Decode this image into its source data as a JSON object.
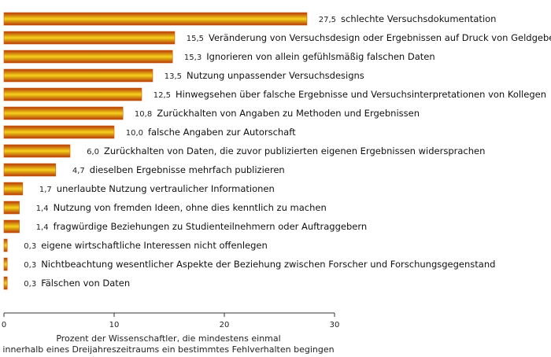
{
  "chart_data": {
    "type": "bar",
    "orientation": "horizontal",
    "categories": [
      "schlechte Versuchsdokumentation",
      "Veränderung von Versuchsdesign oder Ergebnissen auf Druck von Geldgebern",
      "Ignorieren von allein gefühlsmäßig falschen Daten",
      "Nutzung unpassender Versuchsdesigns",
      "Hinwegsehen über falsche Ergebnisse und Versuchsinterpretationen von Kollegen",
      "Zurückhalten von Angaben zu Methoden und Ergebnissen",
      "falsche Angaben zur Autorschaft",
      "Zurückhalten von Daten, die zuvor publizierten eigenen Ergebnissen widersprachen",
      "dieselben Ergebnisse mehrfach publizieren",
      "unerlaubte Nutzung vertraulicher Informationen",
      "Nutzung von fremden Ideen, ohne dies kenntlich zu machen",
      "fragwürdige Beziehungen zu Studienteilnehmern oder Auftraggebern",
      "eigene wirtschaftliche Interessen nicht offenlegen",
      "Nichtbeachtung wesentlicher Aspekte der Beziehung zwischen Forscher und Forschungsgegenstand",
      "Fälschen von Daten"
    ],
    "values": [
      27.5,
      15.5,
      15.3,
      13.5,
      12.5,
      10.8,
      10.0,
      6.0,
      4.7,
      1.7,
      1.4,
      1.4,
      0.3,
      0.3,
      0.3
    ],
    "value_labels": [
      "27,5",
      "15,5",
      "15,3",
      "13,5",
      "12,5",
      "10,8",
      "10,0",
      "6,0",
      "4,7",
      "1,7",
      "1,4",
      "1,4",
      "0,3",
      "0,3",
      "0,3"
    ],
    "xticks": [
      "0",
      "10",
      "20",
      "30"
    ],
    "xlim": [
      0,
      30
    ],
    "xlabel": [
      "Prozent der Wissenschaftler, die mindestens einmal",
      "innerhalb eines Dreijahreszeitraums ein bestimmtes Fehlverhalten begingen"
    ],
    "bar_colors": {
      "edge": "#b33a08",
      "middle": "#f5d21a",
      "outer": "#d2600e"
    }
  }
}
